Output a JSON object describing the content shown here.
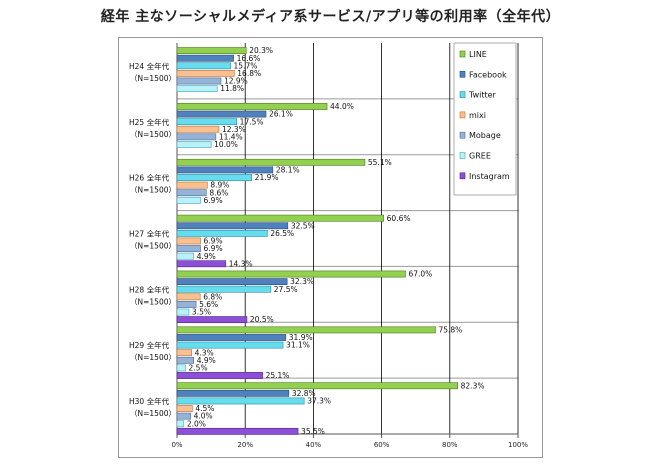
{
  "chart_data": {
    "type": "bar",
    "orientation": "horizontal",
    "title": "経年 主なソーシャルメディア系サービス/アプリ等の利用率（全年代）",
    "categories": [
      {
        "line1": "H24 全年代",
        "line2": "（N=1500）"
      },
      {
        "line1": "H25 全年代",
        "line2": "（N=1500）"
      },
      {
        "line1": "H26 全年代",
        "line2": "（N=1500）"
      },
      {
        "line1": "H27 全年代",
        "line2": "（N=1500）"
      },
      {
        "line1": "H28 全年代",
        "line2": "（N=1500）"
      },
      {
        "line1": "H29 全年代",
        "line2": "（N=1500）"
      },
      {
        "line1": "H30 全年代",
        "line2": "（N=1500）"
      }
    ],
    "series": [
      {
        "name": "LINE",
        "color": "#92d050",
        "stroke": "#4e7a1e",
        "values": [
          20.3,
          44.0,
          55.1,
          60.6,
          67.0,
          75.8,
          82.3
        ]
      },
      {
        "name": "Facebook",
        "color": "#4f81bd",
        "stroke": "#2c4d75",
        "values": [
          16.6,
          26.1,
          28.1,
          32.5,
          32.3,
          31.9,
          32.8
        ]
      },
      {
        "name": "Twitter",
        "color": "#66ddee",
        "stroke": "#2c8c9c",
        "values": [
          15.7,
          17.5,
          21.9,
          26.5,
          27.5,
          31.1,
          37.3
        ]
      },
      {
        "name": "mixi",
        "color": "#fac090",
        "stroke": "#b8703a",
        "values": [
          16.8,
          12.3,
          8.9,
          6.9,
          6.8,
          4.3,
          4.5
        ]
      },
      {
        "name": "Mobage",
        "color": "#95b3d7",
        "stroke": "#4a6c95",
        "values": [
          12.9,
          11.4,
          8.6,
          6.9,
          5.6,
          4.9,
          4.0
        ]
      },
      {
        "name": "GREE",
        "color": "#b7f1fa",
        "stroke": "#4aa6b5",
        "values": [
          11.8,
          10.0,
          6.9,
          4.9,
          3.5,
          2.5,
          2.0
        ]
      },
      {
        "name": "Instagram",
        "color": "#8e4fd8",
        "stroke": "#4f2585",
        "values": [
          null,
          null,
          null,
          14.3,
          20.5,
          25.1,
          35.5
        ]
      }
    ],
    "xlim": [
      0,
      100
    ],
    "xticks": [
      "0%",
      "20%",
      "40%",
      "60%",
      "80%",
      "100%"
    ],
    "value_suffix": "%",
    "grid": true,
    "legend_position": "right"
  }
}
